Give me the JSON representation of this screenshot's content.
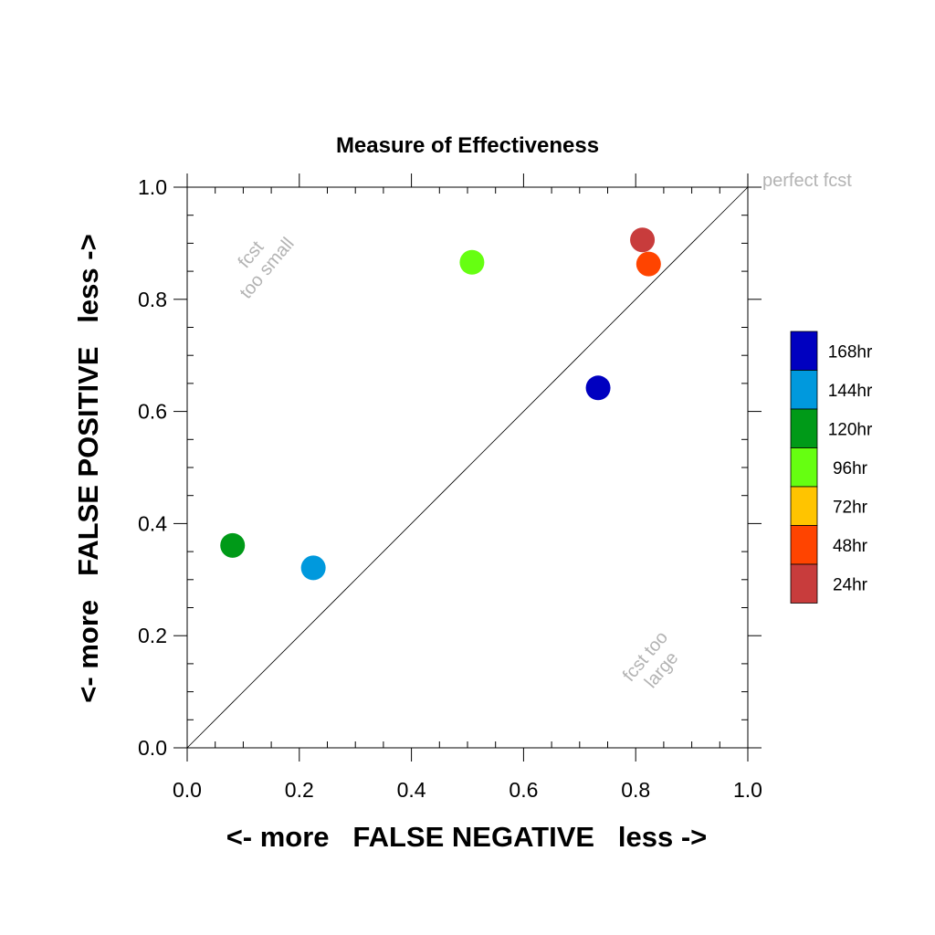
{
  "chart_data": {
    "type": "scatter",
    "title": "Measure of Effectiveness",
    "xlabel": "<- more   FALSE NEGATIVE   less ->",
    "ylabel": "<- more   FALSE POSITIVE   less ->",
    "xlim": [
      0.0,
      1.0
    ],
    "ylim": [
      0.0,
      1.0
    ],
    "xticks": [
      "0.0",
      "0.2",
      "0.4",
      "0.6",
      "0.8",
      "1.0"
    ],
    "yticks": [
      "0.0",
      "0.2",
      "0.4",
      "0.6",
      "0.8",
      "1.0"
    ],
    "grid": false,
    "diagonal_line": true,
    "annotations": {
      "perfect": "perfect fcst",
      "small_line1": "fcst",
      "small_line2": "too small",
      "large_line1": "fcst too",
      "large_line2": "large"
    },
    "series": [
      {
        "name": "168hr",
        "color": "#0000c0",
        "x": 0.733,
        "y": 0.642
      },
      {
        "name": "144hr",
        "color": "#0099dd",
        "x": 0.225,
        "y": 0.321
      },
      {
        "name": "120hr",
        "color": "#009a18",
        "x": 0.081,
        "y": 0.361
      },
      {
        "name": "96hr",
        "color": "#66ff11",
        "x": 0.508,
        "y": 0.866
      },
      {
        "name": "72hr",
        "color": "#ffc400",
        "x": null,
        "y": null
      },
      {
        "name": "48hr",
        "color": "#ff4400",
        "x": 0.823,
        "y": 0.863
      },
      {
        "name": "24hr",
        "color": "#c83c3c",
        "x": 0.812,
        "y": 0.906
      }
    ],
    "legend_position": "right"
  }
}
